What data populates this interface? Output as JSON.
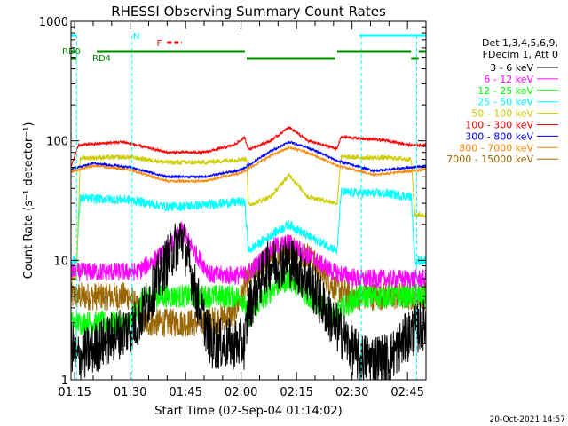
{
  "chart_data": {
    "type": "line",
    "title": "RHESSI Observing Summary Count Rates",
    "xlabel": "Start Time (02-Sep-04 01:14:02)",
    "ylabel": "Count Rate (s⁻¹ detector⁻¹)",
    "y_scale": "log",
    "ylim": [
      1,
      1000
    ],
    "y_ticks": [
      {
        "v": 1,
        "label": "1"
      },
      {
        "v": 10,
        "label": "10"
      },
      {
        "v": 100,
        "label": "100"
      },
      {
        "v": 1000,
        "label": "1000"
      }
    ],
    "xlim_minutes": [
      74,
      170
    ],
    "x_ticks": [
      {
        "m": 75,
        "label": "01:15"
      },
      {
        "m": 90,
        "label": "01:30"
      },
      {
        "m": 105,
        "label": "01:45"
      },
      {
        "m": 120,
        "label": "02:00"
      },
      {
        "m": 135,
        "label": "02:15"
      },
      {
        "m": 150,
        "label": "02:30"
      },
      {
        "m": 165,
        "label": "02:45"
      }
    ],
    "legend": {
      "placement": "right",
      "header": [
        "Det 1,3,4,5,6,9,",
        "FDecim 1, Att 0"
      ],
      "entries": [
        {
          "label": "3 - 6 keV",
          "color": "#000000"
        },
        {
          "label": "6 - 12 keV",
          "color": "#ff00ff"
        },
        {
          "label": "12 - 25 keV",
          "color": "#00ff00"
        },
        {
          "label": "25 - 50 keV",
          "color": "#00ffff"
        },
        {
          "label": "50 - 100 keV",
          "color": "#cccc00"
        },
        {
          "label": "100 - 300 keV",
          "color": "#ff0000"
        },
        {
          "label": "300 - 800 keV",
          "color": "#0000ff"
        },
        {
          "label": "800 - 7000 keV",
          "color": "#ff8800"
        },
        {
          "label": "7000 - 15000 keV",
          "color": "#996600"
        }
      ]
    },
    "flag_labels": {
      "n": "N",
      "f": "F",
      "rd0": "RD0",
      "rd4": "RD4"
    },
    "flag_colors": {
      "night": "#00ffff",
      "flare": "#ff0000",
      "rd": "#008800"
    },
    "night_segments_minutes": [
      [
        74,
        75.5
      ],
      [
        152,
        170
      ]
    ],
    "night_edges_minutes": [
      75.5,
      90.5,
      152.5,
      167.5
    ],
    "flare_segment_minutes": [
      100,
      104
    ],
    "rd0_segments_minutes": [
      [
        74,
        75.5
      ],
      [
        81,
        121
      ],
      [
        146,
        166
      ],
      [
        168,
        170
      ]
    ],
    "rd4_segments_minutes": [
      [
        74,
        75.5
      ],
      [
        121.5,
        145.5
      ],
      [
        166,
        168
      ]
    ],
    "series_profiles": [
      {
        "band": "3 - 6 keV",
        "points": [
          [
            74,
            2
          ],
          [
            75.5,
            1.5
          ],
          [
            92,
            3
          ],
          [
            100,
            10
          ],
          [
            104,
            16
          ],
          [
            108,
            5
          ],
          [
            112,
            2
          ],
          [
            121,
            2
          ],
          [
            122,
            4
          ],
          [
            127,
            9
          ],
          [
            133,
            10
          ],
          [
            138,
            7
          ],
          [
            145,
            3
          ],
          [
            152,
            1.5
          ],
          [
            160,
            1.5
          ],
          [
            166,
            2.5
          ],
          [
            170,
            3
          ]
        ]
      },
      {
        "band": "6 - 12 keV",
        "points": [
          [
            74,
            8
          ],
          [
            75.5,
            8
          ],
          [
            92,
            8
          ],
          [
            100,
            12
          ],
          [
            104,
            18
          ],
          [
            108,
            11
          ],
          [
            112,
            7.5
          ],
          [
            121,
            7.5
          ],
          [
            124,
            9
          ],
          [
            129,
            13
          ],
          [
            133,
            14
          ],
          [
            138,
            11
          ],
          [
            145,
            8
          ],
          [
            152,
            7
          ],
          [
            160,
            7
          ],
          [
            166,
            7
          ],
          [
            170,
            7
          ]
        ]
      },
      {
        "band": "12 - 25 keV",
        "points": [
          [
            74,
            3
          ],
          [
            75.5,
            3
          ],
          [
            90,
            3
          ],
          [
            94,
            5
          ],
          [
            120,
            5
          ],
          [
            122,
            3.5
          ],
          [
            129,
            6
          ],
          [
            133,
            7
          ],
          [
            138,
            5
          ],
          [
            145,
            3.5
          ],
          [
            152,
            5
          ],
          [
            166,
            5
          ],
          [
            170,
            5
          ]
        ]
      },
      {
        "band": "25 - 50 keV",
        "points": [
          [
            74,
            10
          ],
          [
            75.5,
            10
          ],
          [
            76.5,
            33
          ],
          [
            90,
            32
          ],
          [
            100,
            28
          ],
          [
            110,
            29
          ],
          [
            120,
            31
          ],
          [
            121,
            30
          ],
          [
            122,
            12
          ],
          [
            129,
            17
          ],
          [
            133,
            20
          ],
          [
            138,
            16
          ],
          [
            144,
            13
          ],
          [
            146,
            12
          ],
          [
            147,
            37
          ],
          [
            160,
            36
          ],
          [
            166,
            34
          ],
          [
            167,
            10
          ],
          [
            170,
            10
          ]
        ]
      },
      {
        "band": "50 - 100 keV",
        "points": [
          [
            74,
            7
          ],
          [
            75.5,
            7
          ],
          [
            76.5,
            72
          ],
          [
            90,
            73
          ],
          [
            100,
            66
          ],
          [
            110,
            66
          ],
          [
            120,
            70
          ],
          [
            121.5,
            71
          ],
          [
            122,
            29
          ],
          [
            128,
            34
          ],
          [
            133,
            52
          ],
          [
            138,
            34
          ],
          [
            146,
            30
          ],
          [
            147,
            73
          ],
          [
            160,
            72
          ],
          [
            166,
            70
          ],
          [
            167,
            24
          ],
          [
            170,
            24
          ]
        ]
      },
      {
        "band": "100 - 300 keV",
        "points": [
          [
            74,
            60
          ],
          [
            76,
            92
          ],
          [
            88,
            98
          ],
          [
            100,
            80
          ],
          [
            110,
            80
          ],
          [
            118,
            92
          ],
          [
            121,
            106
          ],
          [
            122,
            85
          ],
          [
            128,
            100
          ],
          [
            133,
            130
          ],
          [
            138,
            100
          ],
          [
            146,
            86
          ],
          [
            147,
            108
          ],
          [
            160,
            100
          ],
          [
            166,
            92
          ],
          [
            170,
            92
          ]
        ]
      },
      {
        "band": "300 - 800 keV",
        "points": [
          [
            74,
            58
          ],
          [
            80,
            65
          ],
          [
            90,
            60
          ],
          [
            100,
            50
          ],
          [
            110,
            50
          ],
          [
            120,
            57
          ],
          [
            128,
            82
          ],
          [
            133,
            98
          ],
          [
            138,
            88
          ],
          [
            146,
            68
          ],
          [
            156,
            56
          ],
          [
            166,
            60
          ],
          [
            170,
            62
          ]
        ]
      },
      {
        "band": "800 - 7000 keV",
        "points": [
          [
            74,
            55
          ],
          [
            80,
            62
          ],
          [
            90,
            57
          ],
          [
            100,
            46
          ],
          [
            110,
            46
          ],
          [
            120,
            54
          ],
          [
            128,
            75
          ],
          [
            133,
            88
          ],
          [
            138,
            80
          ],
          [
            146,
            62
          ],
          [
            156,
            52
          ],
          [
            166,
            56
          ],
          [
            170,
            58
          ]
        ]
      },
      {
        "band": "7000 - 15000 keV",
        "points": [
          [
            74,
            5
          ],
          [
            80,
            5
          ],
          [
            90,
            5
          ],
          [
            94,
            3
          ],
          [
            100,
            3
          ],
          [
            110,
            3
          ],
          [
            118,
            3.5
          ],
          [
            122,
            7
          ],
          [
            128,
            11
          ],
          [
            133,
            13
          ],
          [
            138,
            11
          ],
          [
            145,
            6
          ],
          [
            150,
            5
          ],
          [
            160,
            5
          ],
          [
            166,
            5
          ],
          [
            170,
            5
          ]
        ]
      }
    ]
  },
  "footer": {
    "timestamp": "20-Oct-2021 14:57"
  }
}
